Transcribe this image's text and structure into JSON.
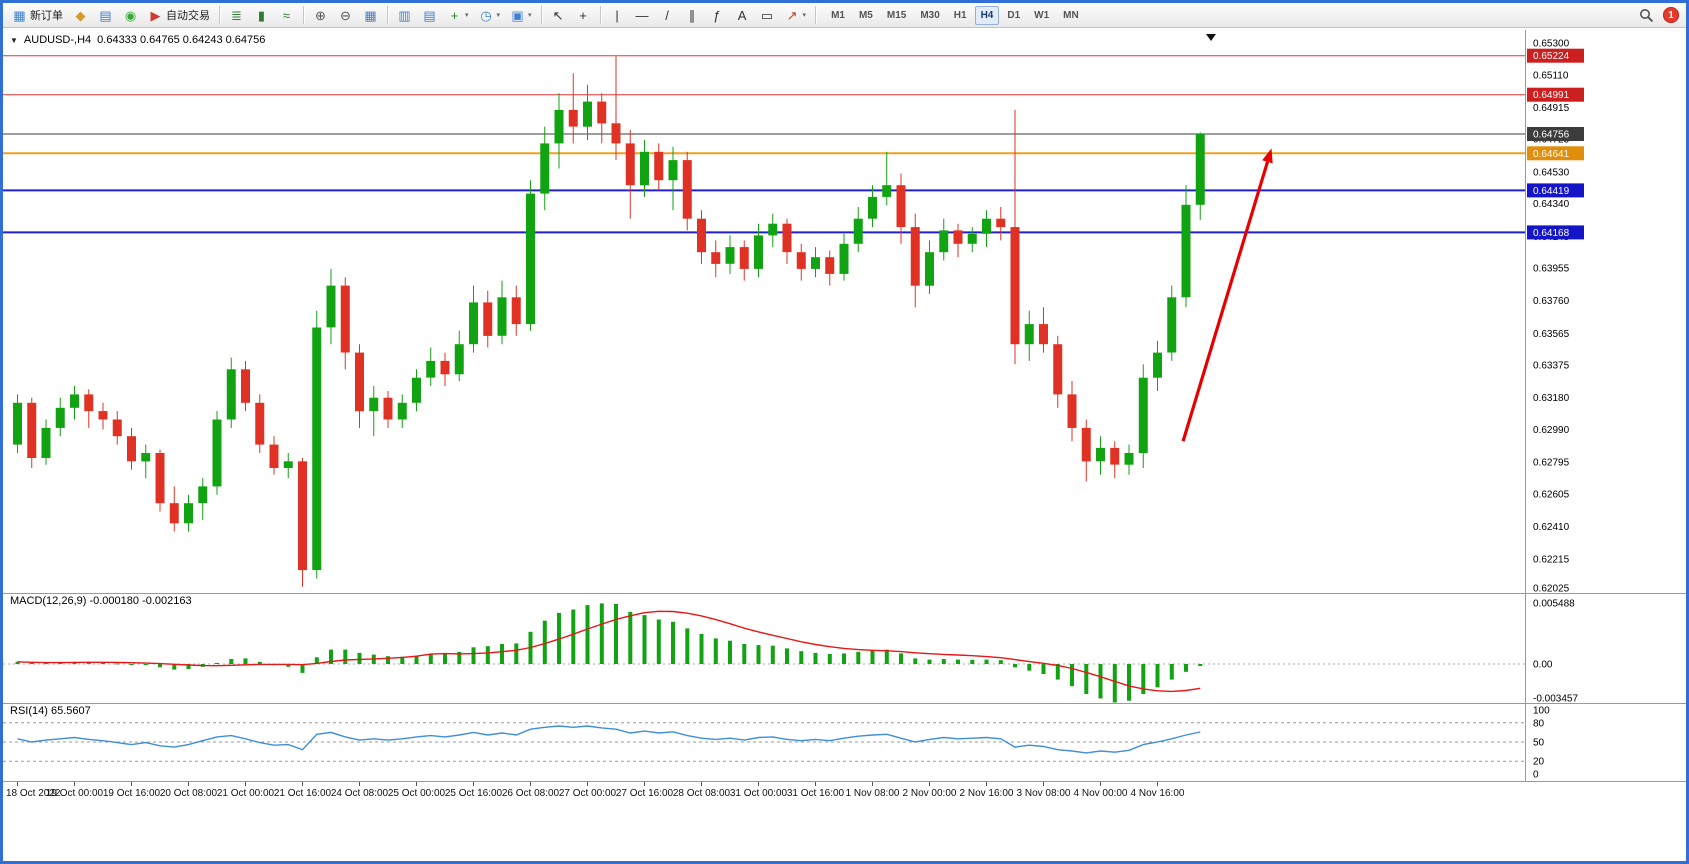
{
  "window": {
    "border_color": "#2f6fd6"
  },
  "toolbar": {
    "groups": [
      {
        "items": [
          {
            "name": "new-order-button",
            "glyph": "▦",
            "color": "#3f7fce",
            "label": "新订单"
          },
          {
            "name": "chart-window-button",
            "glyph": "◆",
            "color": "#d49a2a"
          },
          {
            "name": "navigator-button",
            "glyph": "▤",
            "color": "#3f7fce"
          },
          {
            "name": "refresh-button",
            "glyph": "◉",
            "color": "#3aa63a"
          },
          {
            "name": "autotrading-button",
            "glyph": "▶",
            "color": "#d23b2f",
            "label": "自动交易"
          }
        ]
      },
      {
        "items": [
          {
            "name": "bar-chart-button",
            "glyph": "≣",
            "color": "#2e7d32"
          },
          {
            "name": "candlestick-chart-button",
            "glyph": "▮",
            "color": "#2e7d32"
          },
          {
            "name": "line-chart-button",
            "glyph": "≈",
            "color": "#2e7d32"
          }
        ]
      },
      {
        "items": [
          {
            "name": "zoom-in-button",
            "glyph": "⊕",
            "color": "#555555"
          },
          {
            "name": "zoom-out-button",
            "glyph": "⊖",
            "color": "#555555"
          },
          {
            "name": "tile-windows-button",
            "glyph": "▦",
            "color": "#3f7fce"
          }
        ]
      },
      {
        "items": [
          {
            "name": "arrange-vertical-button",
            "glyph": "▥",
            "color": "#3f7fce"
          },
          {
            "name": "arrange-horizontal-button",
            "glyph": "▤",
            "color": "#3f7fce"
          },
          {
            "name": "new-chart-button",
            "glyph": "+",
            "color": "#2e7d32",
            "dropdown": true
          },
          {
            "name": "periods-button",
            "glyph": "◷",
            "color": "#3f7fce",
            "dropdown": true
          },
          {
            "name": "templates-button",
            "glyph": "▣",
            "color": "#3f7fce",
            "dropdown": true
          }
        ]
      },
      {
        "items": [
          {
            "name": "cursor-button",
            "glyph": "↖",
            "color": "#333333"
          },
          {
            "name": "crosshair-button",
            "glyph": "+",
            "color": "#333333"
          }
        ]
      },
      {
        "items": [
          {
            "name": "vertical-line-button",
            "glyph": "|",
            "color": "#333333"
          },
          {
            "name": "horizontal-line-button",
            "glyph": "—",
            "color": "#333333"
          },
          {
            "name": "trendline-button",
            "glyph": "/",
            "color": "#333333"
          },
          {
            "name": "equidistant-channel-button",
            "glyph": "∥",
            "color": "#333333"
          },
          {
            "name": "fibonacci-button",
            "glyph": "ƒ",
            "color": "#333333"
          },
          {
            "name": "text-button",
            "glyph": "A",
            "color": "#333333"
          },
          {
            "name": "text-label-button",
            "glyph": "▭",
            "color": "#333333"
          },
          {
            "name": "arrows-button",
            "glyph": "↗",
            "color": "#c23a2a",
            "dropdown": true
          }
        ]
      }
    ],
    "timeframes": {
      "items": [
        "M1",
        "M5",
        "M15",
        "M30",
        "H1",
        "H4",
        "D1",
        "W1",
        "MN"
      ],
      "active": "H4"
    },
    "right": {
      "notification_count": "1"
    }
  },
  "chart": {
    "symbol_period": "AUDUSD-,H4",
    "ohlc": "0.64333 0.64765 0.64243 0.64756",
    "macd_label": "MACD(12,26,9) -0.000180 -0.002163",
    "rsi_label": "RSI(14) 65.5607"
  },
  "chart_data": {
    "type": "candlestick",
    "symbol": "AUDUSD-",
    "period": "H4",
    "current_bar": {
      "open": 0.64333,
      "high": 0.64765,
      "low": 0.64243,
      "close": 0.64756
    },
    "up_color": "#12a312",
    "down_color": "#e03224",
    "x_label_every": 4,
    "x_labels": [
      "18 Oct 2022",
      "19 Oct 00:00",
      "19 Oct 16:00",
      "20 Oct 08:00",
      "21 Oct 00:00",
      "21 Oct 16:00",
      "24 Oct 08:00",
      "25 Oct 00:00",
      "25 Oct 16:00",
      "26 Oct 08:00",
      "27 Oct 00:00",
      "27 Oct 16:00",
      "28 Oct 08:00",
      "31 Oct 00:00",
      "31 Oct 16:00",
      "1 Nov 08:00",
      "2 Nov 00:00",
      "2 Nov 16:00",
      "3 Nov 08:00",
      "4 Nov 00:00",
      "4 Nov 16:00"
    ],
    "y_axis_labels": [
      "0.65300",
      "0.65110",
      "0.64915",
      "0.64725",
      "0.64530",
      "0.64340",
      "0.64145",
      "0.63955",
      "0.63760",
      "0.63565",
      "0.63375",
      "0.63180",
      "0.62990",
      "0.62795",
      "0.62605",
      "0.62410",
      "0.62215",
      "0.62025"
    ],
    "ylim": [
      0.62025,
      0.653
    ],
    "levels": [
      {
        "label": "0.65224",
        "price": 0.65224,
        "line_color": "#e23535",
        "badge_color": "#cc1f1f",
        "width": 1
      },
      {
        "label": "0.64991",
        "price": 0.64991,
        "line_color": "#e23535",
        "badge_color": "#cc1f1f",
        "width": 1
      },
      {
        "label": "0.64756",
        "price": 0.64756,
        "line_color": "#3d3d3d",
        "badge_color": "#3c3c3c",
        "width": 1
      },
      {
        "label": "0.64641",
        "price": 0.64641,
        "line_color": "#f0a020",
        "badge_color": "#e08e0b",
        "width": 2
      },
      {
        "label": "0.64419",
        "price": 0.64419,
        "line_color": "#2020d0",
        "badge_color": "#1515c8",
        "width": 2
      },
      {
        "label": "0.64168",
        "price": 0.64168,
        "line_color": "#2020d0",
        "badge_color": "#1515c8",
        "width": 2
      }
    ],
    "candles": [
      [
        0.629,
        0.632,
        0.6285,
        0.6315
      ],
      [
        0.6315,
        0.6318,
        0.6276,
        0.6282
      ],
      [
        0.6282,
        0.6305,
        0.6278,
        0.63
      ],
      [
        0.63,
        0.6318,
        0.6295,
        0.6312
      ],
      [
        0.6312,
        0.6325,
        0.6305,
        0.632
      ],
      [
        0.632,
        0.6323,
        0.63,
        0.631
      ],
      [
        0.631,
        0.6315,
        0.6299,
        0.6305
      ],
      [
        0.6305,
        0.631,
        0.629,
        0.6295
      ],
      [
        0.6295,
        0.63,
        0.6275,
        0.628
      ],
      [
        0.628,
        0.629,
        0.627,
        0.6285
      ],
      [
        0.6285,
        0.6287,
        0.625,
        0.6255
      ],
      [
        0.6255,
        0.6265,
        0.6238,
        0.6243
      ],
      [
        0.6243,
        0.626,
        0.6238,
        0.6255
      ],
      [
        0.6255,
        0.627,
        0.6245,
        0.6265
      ],
      [
        0.6265,
        0.631,
        0.626,
        0.6305
      ],
      [
        0.6305,
        0.6342,
        0.63,
        0.6335
      ],
      [
        0.6335,
        0.634,
        0.631,
        0.6315
      ],
      [
        0.6315,
        0.632,
        0.6285,
        0.629
      ],
      [
        0.629,
        0.6295,
        0.6272,
        0.6276
      ],
      [
        0.6276,
        0.6285,
        0.627,
        0.628
      ],
      [
        0.628,
        0.6282,
        0.6205,
        0.6215
      ],
      [
        0.6215,
        0.637,
        0.621,
        0.636
      ],
      [
        0.636,
        0.6395,
        0.635,
        0.6385
      ],
      [
        0.6385,
        0.639,
        0.6335,
        0.6345
      ],
      [
        0.6345,
        0.635,
        0.63,
        0.631
      ],
      [
        0.631,
        0.6325,
        0.6295,
        0.6318
      ],
      [
        0.6318,
        0.6322,
        0.63,
        0.6305
      ],
      [
        0.6305,
        0.632,
        0.63,
        0.6315
      ],
      [
        0.6315,
        0.6335,
        0.631,
        0.633
      ],
      [
        0.633,
        0.6348,
        0.6325,
        0.634
      ],
      [
        0.634,
        0.6345,
        0.6325,
        0.6332
      ],
      [
        0.6332,
        0.6358,
        0.6328,
        0.635
      ],
      [
        0.635,
        0.6385,
        0.6345,
        0.6375
      ],
      [
        0.6375,
        0.6382,
        0.6348,
        0.6355
      ],
      [
        0.6355,
        0.6388,
        0.635,
        0.6378
      ],
      [
        0.6378,
        0.6385,
        0.6355,
        0.6362
      ],
      [
        0.6362,
        0.6448,
        0.6358,
        0.644
      ],
      [
        0.644,
        0.648,
        0.643,
        0.647
      ],
      [
        0.647,
        0.65,
        0.6455,
        0.649
      ],
      [
        0.649,
        0.6512,
        0.647,
        0.648
      ],
      [
        0.648,
        0.6505,
        0.6472,
        0.6495
      ],
      [
        0.6495,
        0.65,
        0.647,
        0.6482
      ],
      [
        0.6482,
        0.6522,
        0.646,
        0.647
      ],
      [
        0.647,
        0.6478,
        0.6425,
        0.6445
      ],
      [
        0.6445,
        0.6472,
        0.6438,
        0.6465
      ],
      [
        0.6465,
        0.647,
        0.6442,
        0.6448
      ],
      [
        0.6448,
        0.6468,
        0.643,
        0.646
      ],
      [
        0.646,
        0.6465,
        0.6418,
        0.6425
      ],
      [
        0.6425,
        0.643,
        0.6398,
        0.6405
      ],
      [
        0.6405,
        0.6412,
        0.639,
        0.6398
      ],
      [
        0.6398,
        0.6415,
        0.6392,
        0.6408
      ],
      [
        0.6408,
        0.6412,
        0.6388,
        0.6395
      ],
      [
        0.6395,
        0.6422,
        0.639,
        0.6415
      ],
      [
        0.6415,
        0.6428,
        0.6408,
        0.6422
      ],
      [
        0.6422,
        0.6425,
        0.6398,
        0.6405
      ],
      [
        0.6405,
        0.641,
        0.6388,
        0.6395
      ],
      [
        0.6395,
        0.6408,
        0.639,
        0.6402
      ],
      [
        0.6402,
        0.6406,
        0.6385,
        0.6392
      ],
      [
        0.6392,
        0.6416,
        0.6388,
        0.641
      ],
      [
        0.641,
        0.6432,
        0.6405,
        0.6425
      ],
      [
        0.6425,
        0.6445,
        0.642,
        0.6438
      ],
      [
        0.6438,
        0.6465,
        0.6433,
        0.6445
      ],
      [
        0.6445,
        0.6452,
        0.641,
        0.642
      ],
      [
        0.642,
        0.6428,
        0.6372,
        0.6385
      ],
      [
        0.6385,
        0.6412,
        0.638,
        0.6405
      ],
      [
        0.6405,
        0.6425,
        0.64,
        0.6418
      ],
      [
        0.6418,
        0.6422,
        0.6402,
        0.641
      ],
      [
        0.641,
        0.642,
        0.6405,
        0.6416
      ],
      [
        0.6416,
        0.643,
        0.6408,
        0.6425
      ],
      [
        0.6425,
        0.6432,
        0.6412,
        0.642
      ],
      [
        0.642,
        0.649,
        0.6338,
        0.635
      ],
      [
        0.635,
        0.637,
        0.634,
        0.6362
      ],
      [
        0.6362,
        0.6372,
        0.6345,
        0.635
      ],
      [
        0.635,
        0.6355,
        0.6312,
        0.632
      ],
      [
        0.632,
        0.6328,
        0.6292,
        0.63
      ],
      [
        0.63,
        0.6305,
        0.6268,
        0.628
      ],
      [
        0.628,
        0.6295,
        0.6272,
        0.6288
      ],
      [
        0.6288,
        0.6292,
        0.627,
        0.6278
      ],
      [
        0.6278,
        0.629,
        0.6272,
        0.6285
      ],
      [
        0.6285,
        0.6338,
        0.6276,
        0.633
      ],
      [
        0.633,
        0.6352,
        0.6322,
        0.6345
      ],
      [
        0.6345,
        0.6385,
        0.634,
        0.6378
      ],
      [
        0.6378,
        0.6445,
        0.6372,
        0.64333
      ],
      [
        0.64333,
        0.64765,
        0.64243,
        0.64756
      ]
    ],
    "indicators": {
      "macd": {
        "label": "MACD(12,26,9)",
        "value_main": "-0.000180",
        "value_signal": "-0.002163",
        "bar_color": "#12a312",
        "signal_color": "#e81717",
        "axis": [
          {
            "v": 0.005488,
            "t": "0.005488"
          },
          {
            "v": 0,
            "t": "0.00"
          },
          {
            "v": -0.003457,
            "t": "-0.003457"
          }
        ],
        "values": [
          0.0002,
          0.0001,
          8e-05,
          0.00012,
          0.0002,
          0.00022,
          0.00015,
          5e-05,
          -8e-05,
          -0.0001,
          -0.0003,
          -0.0005,
          -0.00045,
          -0.00025,
          0.0001,
          0.00045,
          0.0005,
          0.0002,
          -0.0001,
          -0.00025,
          -0.0008,
          0.0006,
          0.0013,
          0.0013,
          0.001,
          0.00085,
          0.0007,
          0.00065,
          0.00075,
          0.0009,
          0.00095,
          0.0011,
          0.0015,
          0.0016,
          0.0018,
          0.00185,
          0.0029,
          0.0039,
          0.0046,
          0.0049,
          0.0053,
          0.00545,
          0.0054,
          0.0047,
          0.0044,
          0.004,
          0.0038,
          0.0032,
          0.0027,
          0.0023,
          0.0021,
          0.0018,
          0.0017,
          0.00165,
          0.0014,
          0.00115,
          0.001,
          0.0009,
          0.00095,
          0.0011,
          0.00125,
          0.0013,
          0.00095,
          0.0005,
          0.0004,
          0.00045,
          0.0004,
          0.00038,
          0.0004,
          0.00035,
          -0.0003,
          -0.0006,
          -0.0009,
          -0.0014,
          -0.002,
          -0.0027,
          -0.0031,
          -0.00346,
          -0.0033,
          -0.0027,
          -0.0021,
          -0.0014,
          -0.0007,
          -0.00018
        ]
      },
      "rsi": {
        "label": "RSI(14)",
        "value": "65.5607",
        "line_color": "#3e8fd8",
        "range": [
          0,
          100
        ],
        "dashed_levels": [
          80,
          50,
          20
        ],
        "axis": [
          {
            "v": 100,
            "t": "100"
          },
          {
            "v": 80,
            "t": "80"
          },
          {
            "v": 50,
            "t": "50"
          },
          {
            "v": 20,
            "t": "20"
          },
          {
            "v": 0,
            "t": "0"
          }
        ],
        "values": [
          55,
          50,
          53,
          55,
          57,
          54,
          52,
          49,
          46,
          49,
          44,
          42,
          46,
          52,
          58,
          60,
          55,
          49,
          45,
          46,
          38,
          62,
          65,
          58,
          53,
          55,
          53,
          55,
          58,
          60,
          58,
          61,
          65,
          61,
          64,
          61,
          70,
          73,
          75,
          73,
          75,
          72,
          70,
          64,
          67,
          64,
          66,
          60,
          56,
          54,
          56,
          53,
          57,
          58,
          54,
          52,
          54,
          52,
          56,
          59,
          61,
          62,
          56,
          50,
          54,
          57,
          55,
          56,
          57,
          55,
          42,
          45,
          43,
          38,
          36,
          33,
          36,
          34,
          37,
          46,
          50,
          55,
          61,
          65.56
        ]
      }
    },
    "annotations": [
      {
        "type": "arrow",
        "from_index": 81.8,
        "from_price": 0.6292,
        "to_index": 88,
        "to_price": 0.6467,
        "color": "#e60000",
        "width": 3.2
      }
    ]
  }
}
